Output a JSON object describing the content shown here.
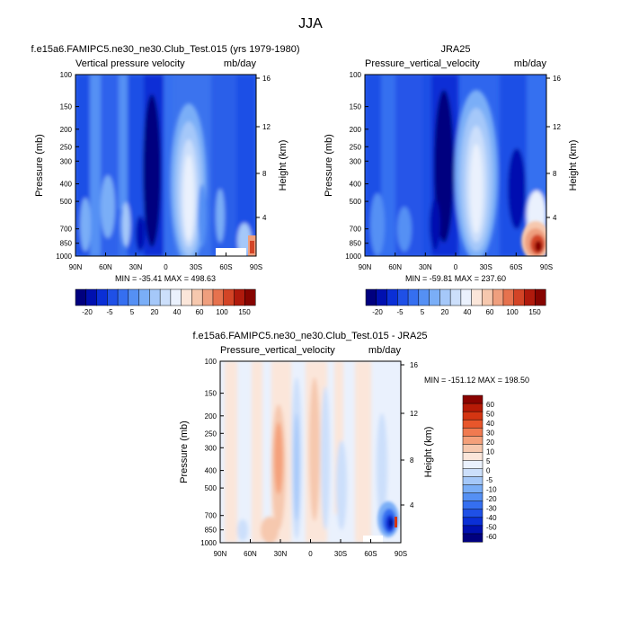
{
  "figure": {
    "season_title": "JJA"
  },
  "colors": {
    "model_obs_palette": [
      "#00007f",
      "#0010b0",
      "#0a2fd6",
      "#1f50e6",
      "#356ff0",
      "#5590f4",
      "#7aaef7",
      "#a5c8f9",
      "#ccdffb",
      "#eaf1fd",
      "#fbe6da",
      "#f6c8ae",
      "#ef9f7e",
      "#e6724e",
      "#d34426",
      "#b01a0c",
      "#860400"
    ],
    "diff_palette": [
      "#00007f",
      "#0010b0",
      "#0a2fd6",
      "#1f50e6",
      "#356ff0",
      "#5590f4",
      "#7aaef7",
      "#a5c8f9",
      "#ccdffb",
      "#eaf1fd",
      "#fbe6da",
      "#f6c8ae",
      "#f4a07a",
      "#f07a50",
      "#e8562b",
      "#d43512",
      "#b71a06",
      "#8a0300"
    ]
  },
  "chart_data": [
    {
      "type": "heatmap",
      "panel": "model",
      "case_title": "f.e15a6.FAMIPC5.ne30_ne30.Club_Test.015 (yrs 1979-1980)",
      "left_string": "Vertical pressure velocity",
      "right_string": "mb/day",
      "xlabel": "",
      "ylabel": "Pressure (mb)",
      "y2label": "Height (km)",
      "x_ticks": [
        "90N",
        "60N",
        "30N",
        "0",
        "30S",
        "60S",
        "90S"
      ],
      "y_ticks": [
        "100",
        "150",
        "200",
        "250",
        "300",
        "400",
        "500",
        "700",
        "850",
        "1000"
      ],
      "y2_ticks": [
        "16",
        "12",
        "8",
        "4"
      ],
      "y_scale": "log",
      "ylim": [
        1000,
        100
      ],
      "min_max": "MIN = -35.41   MAX = 498.63",
      "colorbar_labels": [
        "-20",
        "-5",
        "5",
        "20",
        "40",
        "60",
        "100",
        "150"
      ]
    },
    {
      "type": "heatmap",
      "panel": "obs",
      "case_title": "JRA25",
      "left_string": "Pressure_vertical_velocity",
      "right_string": "mb/day",
      "xlabel": "",
      "ylabel": "Pressure (mb)",
      "y2label": "Height (km)",
      "x_ticks": [
        "90N",
        "60N",
        "30N",
        "0",
        "30S",
        "60S",
        "90S"
      ],
      "y_ticks": [
        "100",
        "150",
        "200",
        "250",
        "300",
        "400",
        "500",
        "700",
        "850",
        "1000"
      ],
      "y2_ticks": [
        "16",
        "12",
        "8",
        "4"
      ],
      "y_scale": "log",
      "ylim": [
        1000,
        100
      ],
      "min_max": "MIN = -59.81   MAX = 237.60",
      "colorbar_labels": [
        "-20",
        "-5",
        "5",
        "20",
        "40",
        "60",
        "100",
        "150"
      ]
    },
    {
      "type": "heatmap",
      "panel": "difference",
      "case_title": "f.e15a6.FAMIPC5.ne30_ne30.Club_Test.015 - JRA25",
      "left_string": "Pressure_vertical_velocity",
      "right_string": "mb/day",
      "xlabel": "",
      "ylabel": "Pressure (mb)",
      "y2label": "Height (km)",
      "x_ticks": [
        "90N",
        "60N",
        "30N",
        "0",
        "30S",
        "60S",
        "90S"
      ],
      "y_ticks": [
        "100",
        "150",
        "200",
        "250",
        "300",
        "400",
        "500",
        "700",
        "850",
        "1000"
      ],
      "y2_ticks": [
        "16",
        "12",
        "8",
        "4"
      ],
      "y_scale": "log",
      "ylim": [
        1000,
        100
      ],
      "min_max": "MIN = -151.12  MAX = 198.50",
      "colorbar_labels": [
        "60",
        "50",
        "40",
        "30",
        "20",
        "10",
        "5",
        "0",
        "-5",
        "-10",
        "-20",
        "-30",
        "-40",
        "-50",
        "-60"
      ]
    }
  ]
}
